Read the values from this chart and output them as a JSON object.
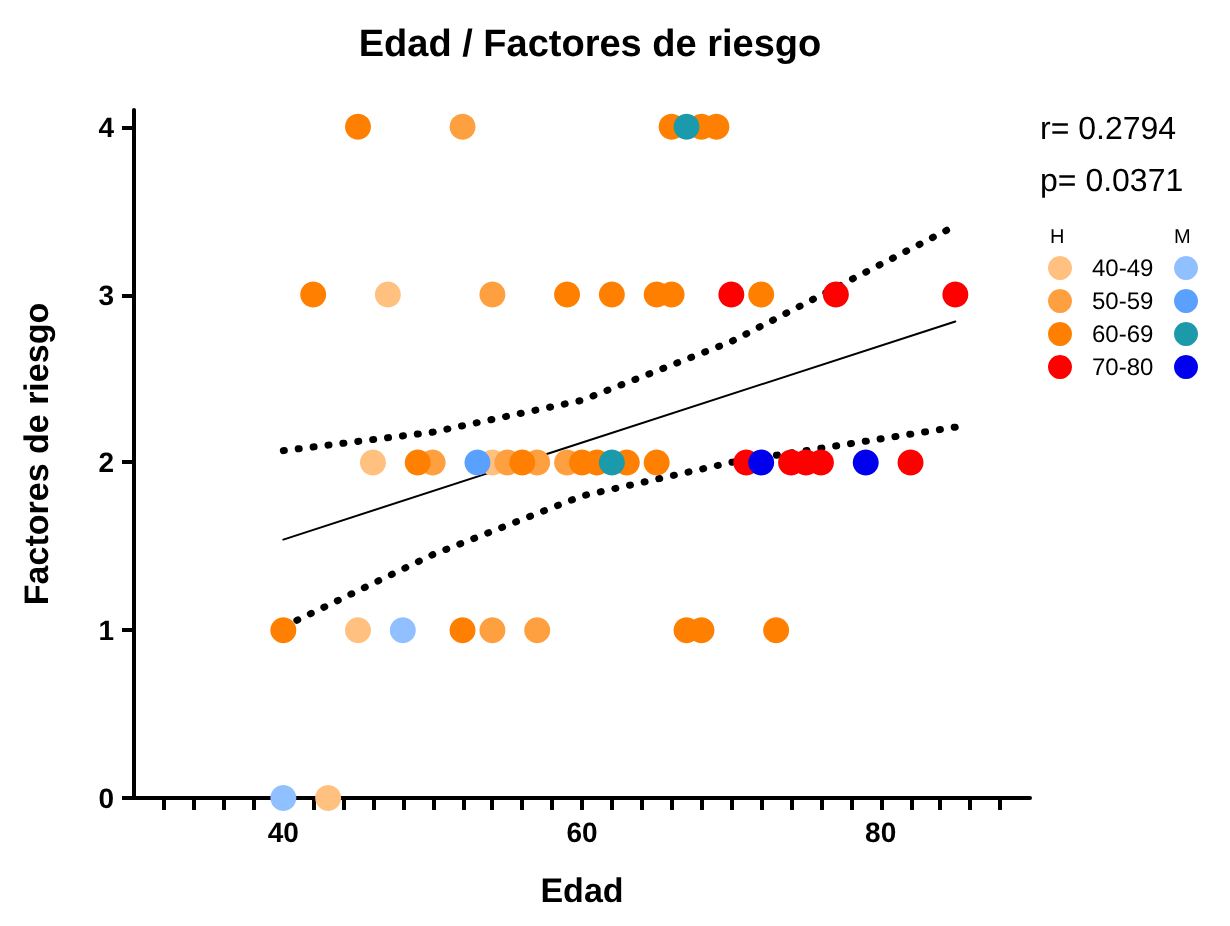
{
  "chart_data": {
    "type": "scatter",
    "title": "Edad / Factores de riesgo",
    "xlabel": "Edad",
    "ylabel": "Factores de riesgo",
    "xlim": [
      30,
      90
    ],
    "ylim": [
      0,
      4.1
    ],
    "xticks": [
      {
        "value": 32,
        "label": null
      },
      {
        "value": 34,
        "label": null
      },
      {
        "value": 36,
        "label": null
      },
      {
        "value": 38,
        "label": null
      },
      40,
      {
        "value": 42,
        "label": null
      },
      {
        "value": 44,
        "label": null
      },
      {
        "value": 46,
        "label": null
      },
      {
        "value": 48,
        "label": null
      },
      {
        "value": 50,
        "label": null
      },
      {
        "value": 52,
        "label": null
      },
      {
        "value": 54,
        "label": null
      },
      {
        "value": 56,
        "label": null
      },
      {
        "value": 58,
        "label": null
      },
      60,
      {
        "value": 62,
        "label": null
      },
      {
        "value": 64,
        "label": null
      },
      {
        "value": 66,
        "label": null
      },
      {
        "value": 68,
        "label": null
      },
      {
        "value": 70,
        "label": null
      },
      {
        "value": 72,
        "label": null
      },
      {
        "value": 74,
        "label": null
      },
      {
        "value": 76,
        "label": null
      },
      {
        "value": 78,
        "label": null
      },
      80,
      {
        "value": 82,
        "label": null
      },
      {
        "value": 84,
        "label": null
      },
      {
        "value": 86,
        "label": null
      },
      {
        "value": 88,
        "label": null
      }
    ],
    "yticks": [
      0,
      1,
      2,
      3,
      4
    ],
    "grid": false,
    "legend": "right",
    "marker": "circle",
    "annotations": [
      "r= 0.2794",
      "p= 0.0371",
      "H",
      "M"
    ],
    "series": [
      {
        "name": "40-49",
        "color": "#ffc080",
        "x": [
          47,
          46,
          54,
          45,
          43
        ],
        "values": [
          3,
          2,
          2,
          1,
          0
        ]
      },
      {
        "name": "50-59",
        "color": "#ffa040",
        "x": [
          52,
          54,
          50,
          55,
          57,
          59,
          54,
          57
        ],
        "values": [
          4,
          3,
          2,
          2,
          2,
          2,
          1,
          1
        ]
      },
      {
        "name": "60-69",
        "color": "#ff8000",
        "x": [
          45,
          66,
          68,
          69,
          42,
          59,
          62,
          65,
          66,
          72,
          49,
          56,
          60,
          61,
          63,
          65,
          40,
          52,
          67,
          68,
          73
        ],
        "values": [
          4,
          4,
          4,
          4,
          3,
          3,
          3,
          3,
          3,
          3,
          2,
          2,
          2,
          2,
          2,
          2,
          1,
          1,
          1,
          1,
          1
        ]
      },
      {
        "name": "70-80",
        "color": "#ff0000",
        "x": [
          70,
          77,
          85,
          71,
          74,
          75,
          76,
          82
        ],
        "values": [
          3,
          3,
          3,
          2,
          2,
          2,
          2,
          2
        ]
      },
      {
        "color": "#90c0ff",
        "x": [
          48,
          40
        ],
        "values": [
          1,
          0
        ]
      },
      {
        "color": "#5aa0ff",
        "x": [
          53
        ],
        "values": [
          2
        ]
      },
      {
        "color": "#1a9aaa",
        "x": [
          67,
          62
        ],
        "values": [
          4,
          2
        ]
      },
      {
        "color": "#0000ee",
        "x": [
          72,
          79
        ],
        "values": [
          2,
          2
        ]
      },
      {
        "type": "line",
        "color": "#000000",
        "marker": "none",
        "line_style": "solid",
        "x": [
          40,
          85
        ],
        "values": [
          1.54,
          2.84
        ]
      },
      {
        "type": "line",
        "color": "#000000",
        "marker": "none",
        "line_style": "dotted",
        "x": [
          40,
          50,
          60,
          70,
          85
        ],
        "values": [
          2.07,
          2.18,
          2.37,
          2.72,
          3.41
        ]
      },
      {
        "type": "line",
        "color": "#000000",
        "marker": "none",
        "line_style": "dotted",
        "x": [
          40,
          50,
          60,
          70,
          85
        ],
        "values": [
          1.02,
          1.45,
          1.8,
          2.0,
          2.21
        ]
      }
    ]
  }
}
